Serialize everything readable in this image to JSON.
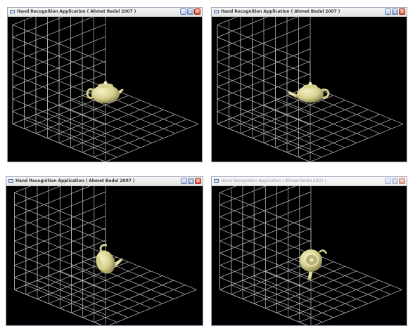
{
  "windows": [
    {
      "title": "Hand Recognition Application ( Ahmet Bedel 2007 )",
      "active": true,
      "pose": "front"
    },
    {
      "title": "Hand Recognition Application ( Ahmet Bedel 2007 )",
      "active": true,
      "pose": "side"
    },
    {
      "title": "Hand Recognition Application ( Ahmet Bedel 2007 )",
      "active": true,
      "pose": "tilted"
    },
    {
      "title": "Hand Recognition Application ( Ahmet Bedel 2007 )",
      "active": false,
      "pose": "top"
    }
  ],
  "window_buttons": {
    "minimize_glyph": "_",
    "maximize_glyph": "□",
    "close_glyph": "✕"
  },
  "caption_text": "~ ~ ~ ~ ~",
  "colors": {
    "grid": "#d6d6d6",
    "teapot_light": "#f4f1c9",
    "teapot_mid": "#d6d18c",
    "teapot_dark": "#8c8750",
    "background": "#000000"
  }
}
